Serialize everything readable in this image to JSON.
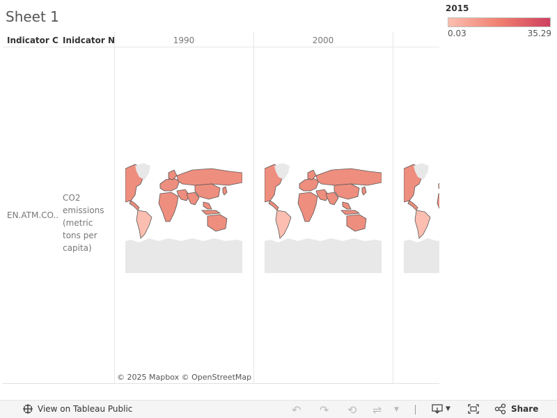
{
  "sheet": {
    "title": "Sheet 1"
  },
  "legend": {
    "title": "2015",
    "min_label": "0.03",
    "max_label": "35.29",
    "color_low": "#fbbeb0",
    "color_mid": "#f08070",
    "color_high": "#cf3f5f"
  },
  "table": {
    "col1_header": "Indicator C..",
    "col2_header": "Inidcator N..",
    "years": [
      "1990",
      "2000"
    ],
    "row": {
      "code": "EN.ATM.CO..",
      "name": "CO2 emissions (metric tons per capita)"
    }
  },
  "map": {
    "fill_color": "#ee8e7e",
    "outline_color": "#555555",
    "antarctica_color": "#e8e8e8",
    "attribution": "© 2025 Mapbox  © OpenStreetMap"
  },
  "toolbar": {
    "view_label": "View on Tableau Public",
    "share_label": "Share",
    "icons": [
      "tableau-logo-icon",
      "undo-icon",
      "redo-icon",
      "revert-icon",
      "refresh-icon",
      "download-icon",
      "fullscreen-icon",
      "share-icon"
    ]
  }
}
